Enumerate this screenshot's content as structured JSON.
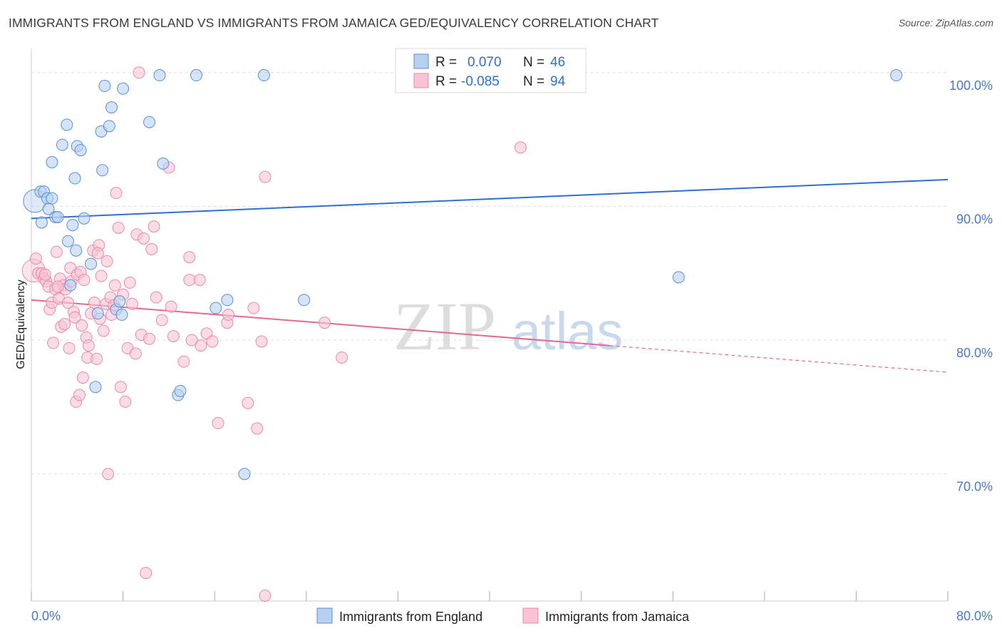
{
  "title": "IMMIGRANTS FROM ENGLAND VS IMMIGRANTS FROM JAMAICA GED/EQUIVALENCY CORRELATION CHART",
  "source": "Source: ZipAtlas.com",
  "watermark": {
    "zip": "ZIP",
    "atlas": "atlas"
  },
  "colors": {
    "england_fill": "#b8d0f0",
    "england_stroke": "#5b8fd6",
    "england_line": "#2f6fd0",
    "jamaica_fill": "#f8c4d4",
    "jamaica_stroke": "#e88aa8",
    "jamaica_line": "#e06a92",
    "tick_label": "#4a78c8",
    "grid": "#dddddd"
  },
  "legend_box": {
    "rows": [
      {
        "r_label": "R =",
        "r_value": "0.070",
        "n_label": "N =",
        "n_value": "46"
      },
      {
        "r_label": "R =",
        "r_value": "-0.085",
        "n_label": "N =",
        "n_value": "94"
      }
    ]
  },
  "chart_data": {
    "type": "scatter",
    "title": "IMMIGRANTS FROM ENGLAND VS IMMIGRANTS FROM JAMAICA GED/EQUIVALENCY CORRELATION CHART",
    "xlabel": "",
    "ylabel": "GED/Equivalency",
    "xlim": [
      0,
      80
    ],
    "ylim": [
      60.5,
      101.8
    ],
    "x_tick_labels": [
      {
        "value": 0,
        "label": "0.0%"
      },
      {
        "value": 80,
        "label": "80.0%"
      }
    ],
    "y_tick_labels": [
      {
        "value": 100,
        "label": "100.0%"
      },
      {
        "value": 90,
        "label": "90.0%"
      },
      {
        "value": 80,
        "label": "80.0%"
      },
      {
        "value": 70,
        "label": "70.0%"
      }
    ],
    "y_gridlines": [
      100,
      90,
      80,
      70
    ],
    "grid": true,
    "legend_placement": "top-center and bottom",
    "series": [
      {
        "name": "Immigrants from England",
        "r": 0.07,
        "n": 46,
        "trend": {
          "x0": 0,
          "y0": 89.1,
          "x1": 80,
          "y1": 92.0,
          "solid_until": 80
        },
        "points": [
          [
            0.3,
            90.4,
            "big"
          ],
          [
            0.8,
            91.1
          ],
          [
            1.1,
            91.1
          ],
          [
            1.4,
            90.6
          ],
          [
            1.8,
            90.6
          ],
          [
            1.5,
            89.8
          ],
          [
            2.1,
            89.2
          ],
          [
            2.3,
            89.2
          ],
          [
            2.7,
            94.6
          ],
          [
            3.1,
            96.1
          ],
          [
            3.2,
            87.4
          ],
          [
            3.4,
            84.1
          ],
          [
            3.6,
            88.6
          ],
          [
            3.8,
            92.1
          ],
          [
            4.0,
            94.5
          ],
          [
            4.3,
            94.2
          ],
          [
            4.6,
            89.1
          ],
          [
            5.2,
            85.7
          ],
          [
            5.6,
            76.5
          ],
          [
            5.8,
            82.0
          ],
          [
            6.1,
            95.6
          ],
          [
            6.2,
            92.7
          ],
          [
            6.4,
            99.0
          ],
          [
            6.8,
            96.0
          ],
          [
            7.0,
            97.4
          ],
          [
            7.4,
            82.3
          ],
          [
            7.7,
            82.9
          ],
          [
            7.9,
            81.9
          ],
          [
            8.0,
            98.8
          ],
          [
            10.3,
            96.3
          ],
          [
            11.2,
            99.8
          ],
          [
            11.5,
            93.2
          ],
          [
            12.8,
            75.9
          ],
          [
            13.0,
            76.2
          ],
          [
            14.4,
            99.8
          ],
          [
            16.1,
            82.4
          ],
          [
            17.1,
            83.0
          ],
          [
            18.6,
            70.0
          ],
          [
            20.3,
            99.8
          ],
          [
            23.8,
            83.0
          ],
          [
            32.7,
            99.8
          ],
          [
            56.5,
            84.7
          ],
          [
            75.5,
            99.8
          ],
          [
            1.8,
            93.3
          ],
          [
            0.9,
            88.8
          ],
          [
            3.9,
            86.7
          ]
        ]
      },
      {
        "name": "Immigrants from Jamaica",
        "r": -0.085,
        "n": 94,
        "trend": {
          "x0": 0,
          "y0": 83.0,
          "x1": 80,
          "y1": 77.6,
          "solid_until": 50.5
        },
        "points": [
          [
            0.2,
            85.2,
            "big"
          ],
          [
            0.4,
            86.1
          ],
          [
            0.6,
            85.0
          ],
          [
            0.9,
            85.0
          ],
          [
            1.1,
            84.6
          ],
          [
            1.3,
            84.4
          ],
          [
            1.5,
            84.0
          ],
          [
            1.6,
            82.3
          ],
          [
            1.8,
            82.8
          ],
          [
            1.9,
            79.8
          ],
          [
            2.1,
            83.8
          ],
          [
            2.2,
            86.6
          ],
          [
            2.4,
            83.1
          ],
          [
            2.5,
            84.6
          ],
          [
            2.6,
            81.0
          ],
          [
            2.8,
            84.1
          ],
          [
            2.9,
            81.2
          ],
          [
            3.0,
            83.8
          ],
          [
            3.2,
            82.8
          ],
          [
            3.3,
            79.4
          ],
          [
            3.4,
            85.4
          ],
          [
            3.5,
            84.4
          ],
          [
            3.7,
            82.1
          ],
          [
            3.8,
            81.7
          ],
          [
            3.9,
            75.4
          ],
          [
            4.0,
            84.9
          ],
          [
            4.2,
            75.9
          ],
          [
            4.3,
            85.1
          ],
          [
            4.4,
            81.1
          ],
          [
            4.5,
            77.2
          ],
          [
            4.6,
            84.5
          ],
          [
            4.8,
            80.2
          ],
          [
            4.9,
            78.7
          ],
          [
            5.0,
            79.6
          ],
          [
            5.2,
            82.0
          ],
          [
            5.4,
            86.7
          ],
          [
            5.5,
            82.8
          ],
          [
            5.7,
            78.6
          ],
          [
            5.9,
            87.1
          ],
          [
            6.0,
            81.6
          ],
          [
            6.1,
            84.8
          ],
          [
            6.3,
            80.7
          ],
          [
            6.5,
            82.7
          ],
          [
            6.7,
            70.0
          ],
          [
            6.9,
            83.2
          ],
          [
            7.0,
            81.9
          ],
          [
            7.2,
            82.6
          ],
          [
            7.4,
            91.0
          ],
          [
            7.6,
            88.4
          ],
          [
            7.8,
            76.5
          ],
          [
            8.0,
            83.4
          ],
          [
            8.2,
            75.4
          ],
          [
            8.4,
            79.4
          ],
          [
            8.6,
            84.3
          ],
          [
            8.8,
            82.7
          ],
          [
            9.2,
            87.9
          ],
          [
            9.4,
            100.0
          ],
          [
            9.6,
            80.4
          ],
          [
            9.8,
            87.6
          ],
          [
            10.0,
            62.6
          ],
          [
            10.3,
            80.1
          ],
          [
            10.5,
            86.8
          ],
          [
            10.7,
            88.5
          ],
          [
            10.9,
            83.2
          ],
          [
            11.4,
            81.5
          ],
          [
            12.0,
            92.9
          ],
          [
            12.4,
            80.3
          ],
          [
            13.3,
            78.4
          ],
          [
            13.8,
            86.2
          ],
          [
            13.8,
            84.5
          ],
          [
            14.7,
            84.5
          ],
          [
            14.8,
            79.6
          ],
          [
            15.3,
            80.5
          ],
          [
            15.8,
            79.9
          ],
          [
            16.3,
            73.8
          ],
          [
            17.1,
            81.3
          ],
          [
            17.2,
            81.9
          ],
          [
            18.9,
            75.3
          ],
          [
            19.4,
            82.4
          ],
          [
            19.7,
            73.4
          ],
          [
            20.1,
            79.9
          ],
          [
            20.4,
            92.2
          ],
          [
            20.4,
            60.9
          ],
          [
            25.6,
            81.3
          ],
          [
            27.1,
            78.7
          ],
          [
            42.7,
            94.4
          ],
          [
            1.2,
            84.9
          ],
          [
            2.3,
            84.0
          ],
          [
            5.8,
            86.5
          ],
          [
            7.3,
            84.1
          ],
          [
            9.1,
            79.0
          ],
          [
            12.2,
            82.5
          ],
          [
            14.0,
            80.0
          ],
          [
            6.6,
            85.9
          ]
        ]
      }
    ]
  },
  "bottom_legend": [
    {
      "label": "Immigrants from England"
    },
    {
      "label": "Immigrants from Jamaica"
    }
  ]
}
